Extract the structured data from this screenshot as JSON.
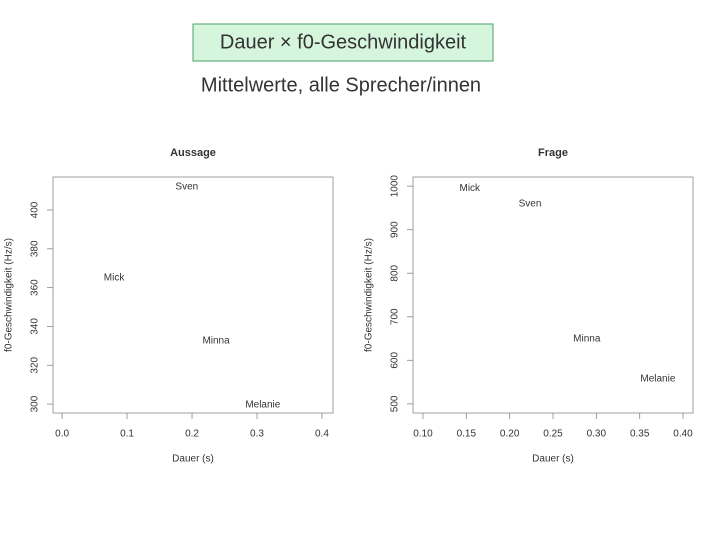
{
  "title": "Dauer × f0-Geschwindigkeit",
  "subtitle": "Mittelwerte, alle Sprecher/innen",
  "chart_data": [
    {
      "type": "scatter",
      "title": "Aussage",
      "x_label": "Dauer (s)",
      "y_label": "f0-Geschwindigkeit (Hz/s)",
      "labels": [
        "Sven",
        "Mick",
        "Minna",
        "Melanie"
      ],
      "x": [
        0.192,
        0.08,
        0.237,
        0.309
      ],
      "values": [
        412,
        365,
        332.5,
        299.5
      ],
      "xlim": [
        -0.014,
        0.417
      ],
      "ylim": [
        295.4,
        417
      ],
      "xticks": [
        {
          "value": 0,
          "label": "0.0"
        },
        0.1,
        0.2,
        0.3,
        0.4
      ],
      "yticks": [
        300,
        320,
        340,
        360,
        380,
        400
      ]
    },
    {
      "type": "scatter",
      "title": "Frage",
      "x_label": "Dauer (s)",
      "y_label": "f0-Geschwindigkeit (Hz/s)",
      "labels": [
        "Mick",
        "Sven",
        "Minna",
        "Melanie"
      ],
      "x": [
        0.154,
        0.2235,
        0.289,
        0.371
      ],
      "values": [
        995,
        959,
        649,
        557
      ],
      "xlim": [
        0.0885,
        0.4115
      ],
      "ylim": [
        479,
        1021
      ],
      "xticks": [
        {
          "value": 0.1,
          "label": "0.10"
        },
        0.15,
        {
          "value": 0.2,
          "label": "0.20"
        },
        0.25,
        {
          "value": 0.3,
          "label": "0.30"
        },
        0.35,
        {
          "value": 0.4,
          "label": "0.40"
        }
      ],
      "yticks": [
        500,
        600,
        700,
        800,
        900,
        1000
      ]
    }
  ]
}
